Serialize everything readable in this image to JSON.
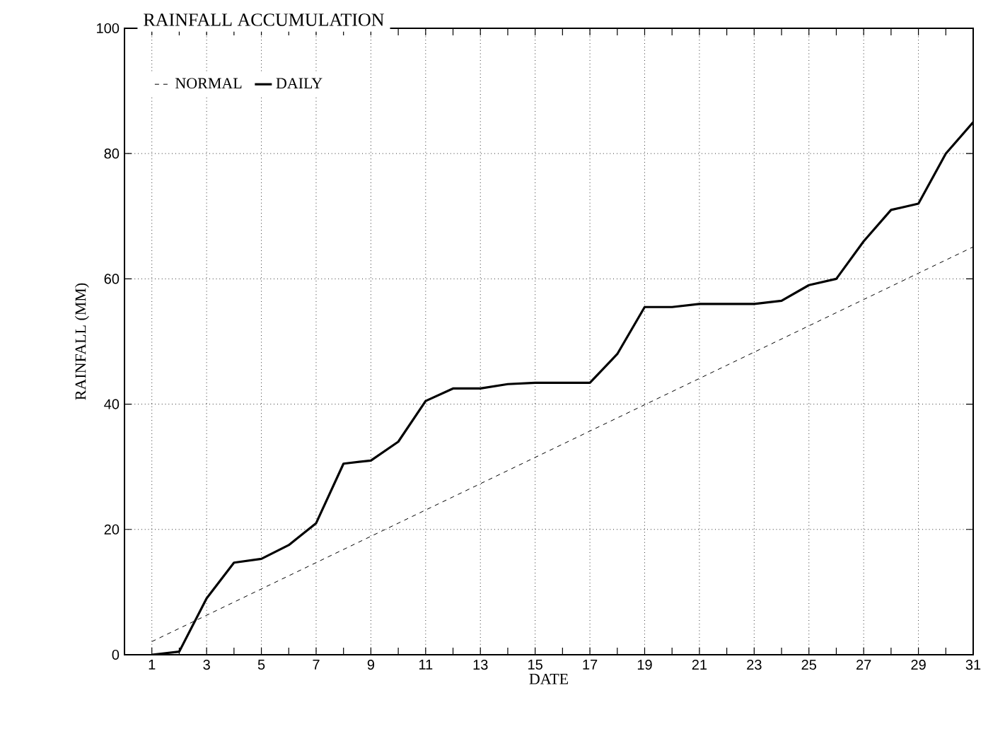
{
  "chart_data": {
    "type": "line",
    "title": "RAINFALL ACCUMULATION",
    "xlabel": "DATE",
    "ylabel": "RAINFALL (MM)",
    "x": [
      1,
      2,
      3,
      4,
      5,
      6,
      7,
      8,
      9,
      10,
      11,
      12,
      13,
      14,
      15,
      16,
      17,
      18,
      19,
      20,
      21,
      22,
      23,
      24,
      25,
      26,
      27,
      28,
      29,
      30,
      31
    ],
    "series": [
      {
        "name": "NORMAL",
        "color": "#000000",
        "line_style": "dashed",
        "values": [
          2.1,
          4.2,
          6.3,
          8.4,
          10.5,
          12.6,
          14.7,
          16.8,
          18.9,
          21,
          23.1,
          25.2,
          27.3,
          29.4,
          31.5,
          33.6,
          35.7,
          37.8,
          39.9,
          42,
          44.1,
          46.2,
          48.3,
          50.4,
          52.5,
          54.6,
          56.7,
          58.8,
          60.9,
          63,
          65.1
        ]
      },
      {
        "name": "DAILY",
        "color": "#000000",
        "line_style": "solid",
        "values": [
          0,
          0.5,
          9,
          14.7,
          15.3,
          17.5,
          21,
          30.5,
          31,
          34,
          40.5,
          42.5,
          42.5,
          43.2,
          43.4,
          43.4,
          43.4,
          48,
          55.5,
          55.5,
          56,
          56,
          56,
          56.5,
          59,
          60,
          66,
          71,
          72,
          80,
          85
        ]
      }
    ],
    "xlim": [
      0,
      31
    ],
    "ylim": [
      0,
      100
    ],
    "xticks": [
      1,
      3,
      5,
      7,
      9,
      11,
      13,
      15,
      17,
      19,
      21,
      23,
      25,
      27,
      29,
      31
    ],
    "yticks": [
      0,
      20,
      40,
      60,
      80,
      100
    ],
    "grid": true,
    "legend": "top left",
    "marker": "none"
  }
}
